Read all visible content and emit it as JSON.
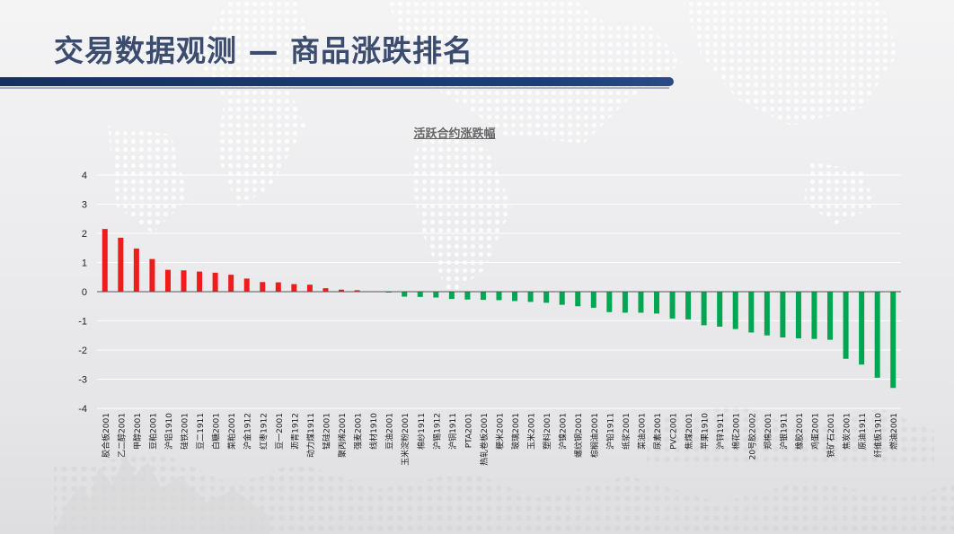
{
  "page": {
    "title": "交易数据观测 — 商品涨跌排名"
  },
  "colors": {
    "up": "#ee1c1c",
    "down": "#00a651",
    "title": "#3b4c6e",
    "banner": "#1e3d78"
  },
  "chart_data": {
    "type": "bar",
    "title": "活跃合约涨跌幅",
    "ylim": [
      -4,
      4
    ],
    "yticks": [
      4,
      3,
      2,
      1,
      0,
      -1,
      -2,
      -3,
      -4
    ],
    "grid": true,
    "legend": "none",
    "categories": [
      "胶合板2001",
      "乙二醇2001",
      "甲醇2001",
      "豆粕2001",
      "沪铝1910",
      "硅铁2001",
      "豆二1911",
      "白糖2001",
      "菜粕2001",
      "沪金1912",
      "红枣1912",
      "豆一2001",
      "沥青1912",
      "动力煤1911",
      "锰硅2001",
      "聚丙烯2001",
      "强麦2001",
      "线材1910",
      "豆油2001",
      "玉米淀粉2001",
      "棉纱1911",
      "沪锡1912",
      "沪铜1911",
      "PTA2001",
      "热轧卷板2001",
      "粳米2001",
      "玻璃2001",
      "玉米2001",
      "塑料2001",
      "沪镍2001",
      "螺纹钢2001",
      "棕榈油2001",
      "沪铅1911",
      "纸浆2001",
      "菜油2001",
      "尿素2001",
      "PVC2001",
      "焦煤2001",
      "苹果1910",
      "沪锌1911",
      "棉花2001",
      "20号胶2002",
      "郑棉2001",
      "沪银1911",
      "橡胶2001",
      "鸡蛋2001",
      "铁矿石2001",
      "焦炭2001",
      "原油1911",
      "纤维板1910",
      "燃油2001"
    ],
    "values": [
      2.15,
      1.85,
      1.48,
      1.12,
      0.75,
      0.73,
      0.69,
      0.65,
      0.58,
      0.45,
      0.33,
      0.32,
      0.26,
      0.24,
      0.12,
      0.07,
      0.05,
      0.0,
      -0.03,
      -0.17,
      -0.18,
      -0.2,
      -0.25,
      -0.27,
      -0.28,
      -0.29,
      -0.32,
      -0.35,
      -0.38,
      -0.45,
      -0.5,
      -0.55,
      -0.7,
      -0.72,
      -0.72,
      -0.75,
      -0.92,
      -0.95,
      -1.15,
      -1.2,
      -1.28,
      -1.4,
      -1.5,
      -1.57,
      -1.6,
      -1.62,
      -1.65,
      -2.3,
      -2.5,
      -2.95,
      -3.3
    ]
  }
}
